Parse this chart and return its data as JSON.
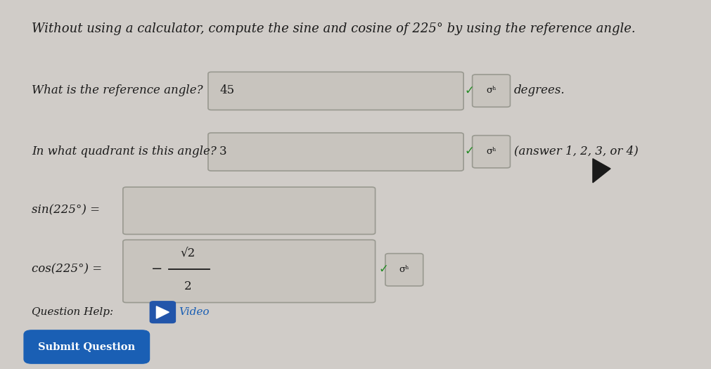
{
  "bg_color": "#d0ccc8",
  "title_text": "Without using a calculator, compute the sine and cosine of 225° by using the reference angle.",
  "line1_label": "What is the reference angle?",
  "line1_answer": "45",
  "line1_suffix": "degrees.",
  "line2_label": "In what quadrant is this angle?",
  "line2_answer": "3",
  "line2_suffix": "(answer 1, 2, 3, or 4)",
  "line3_label": "sin(225°) =",
  "line4_label": "cos(225°) =",
  "help_text": "Question Help:",
  "video_text": "Video",
  "button_text": "Submit Question",
  "button_color": "#1a5fb4",
  "button_text_color": "#ffffff",
  "text_color": "#1a1a1a",
  "box_color": "#c8c4be",
  "box_border": "#999990",
  "check_color": "#228B22",
  "video_color": "#1a5fb4"
}
